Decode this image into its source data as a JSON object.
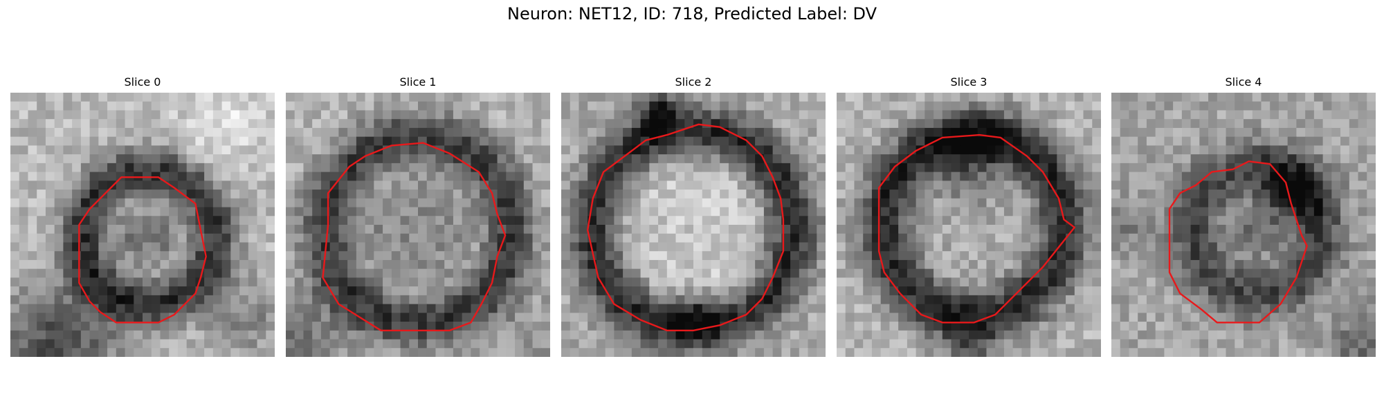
{
  "figure": {
    "title": "Neuron: NET12, ID: 718, Predicted Label: DV",
    "contour_color": "#e8191b",
    "slices": [
      {
        "title": "Slice 0",
        "seed": 11,
        "contour": [
          [
            0.42,
            0.32
          ],
          [
            0.56,
            0.32
          ],
          [
            0.62,
            0.36
          ],
          [
            0.7,
            0.42
          ],
          [
            0.72,
            0.52
          ],
          [
            0.74,
            0.62
          ],
          [
            0.72,
            0.7
          ],
          [
            0.7,
            0.76
          ],
          [
            0.62,
            0.84
          ],
          [
            0.56,
            0.87
          ],
          [
            0.4,
            0.87
          ],
          [
            0.34,
            0.83
          ],
          [
            0.3,
            0.79
          ],
          [
            0.26,
            0.72
          ],
          [
            0.26,
            0.5
          ],
          [
            0.3,
            0.44
          ],
          [
            0.34,
            0.4
          ]
        ],
        "shading": {
          "bg": 185,
          "ringDark": 50,
          "center": 120,
          "ringCx": 0.52,
          "ringCy": 0.55,
          "ringR": 0.25,
          "ringW": 0.09,
          "extra": [
            [
              0.18,
              0.95,
              0.22,
              -110
            ],
            [
              0.82,
              0.1,
              0.18,
              40
            ],
            [
              0.9,
              0.85,
              0.15,
              -50
            ]
          ]
        }
      },
      {
        "title": "Slice 1",
        "seed": 23,
        "contour": [
          [
            0.4,
            0.2
          ],
          [
            0.52,
            0.19
          ],
          [
            0.62,
            0.23
          ],
          [
            0.73,
            0.3
          ],
          [
            0.78,
            0.38
          ],
          [
            0.8,
            0.46
          ],
          [
            0.83,
            0.54
          ],
          [
            0.8,
            0.62
          ],
          [
            0.78,
            0.72
          ],
          [
            0.74,
            0.8
          ],
          [
            0.7,
            0.87
          ],
          [
            0.62,
            0.9
          ],
          [
            0.5,
            0.9
          ],
          [
            0.36,
            0.9
          ],
          [
            0.2,
            0.8
          ],
          [
            0.14,
            0.7
          ],
          [
            0.16,
            0.5
          ],
          [
            0.16,
            0.38
          ],
          [
            0.24,
            0.28
          ],
          [
            0.3,
            0.24
          ]
        ],
        "shading": {
          "bg": 180,
          "ringDark": 60,
          "center": 140,
          "ringCx": 0.5,
          "ringCy": 0.52,
          "ringR": 0.35,
          "ringW": 0.1,
          "extra": [
            [
              0.05,
              0.95,
              0.2,
              -60
            ],
            [
              0.95,
              0.95,
              0.2,
              -30
            ]
          ]
        }
      },
      {
        "title": "Slice 2",
        "seed": 37,
        "contour": [
          [
            0.52,
            0.12
          ],
          [
            0.6,
            0.13
          ],
          [
            0.7,
            0.18
          ],
          [
            0.76,
            0.24
          ],
          [
            0.8,
            0.32
          ],
          [
            0.83,
            0.4
          ],
          [
            0.84,
            0.48
          ],
          [
            0.84,
            0.6
          ],
          [
            0.8,
            0.7
          ],
          [
            0.76,
            0.78
          ],
          [
            0.7,
            0.84
          ],
          [
            0.6,
            0.88
          ],
          [
            0.5,
            0.9
          ],
          [
            0.4,
            0.9
          ],
          [
            0.3,
            0.86
          ],
          [
            0.2,
            0.8
          ],
          [
            0.14,
            0.7
          ],
          [
            0.1,
            0.52
          ],
          [
            0.12,
            0.4
          ],
          [
            0.16,
            0.3
          ],
          [
            0.24,
            0.24
          ],
          [
            0.32,
            0.18
          ],
          [
            0.4,
            0.16
          ]
        ],
        "shading": {
          "bg": 170,
          "ringDark": 45,
          "center": 200,
          "ringCx": 0.5,
          "ringCy": 0.52,
          "ringR": 0.38,
          "ringW": 0.09,
          "extra": [
            [
              0.36,
              0.08,
              0.08,
              -120
            ],
            [
              0.5,
              0.84,
              0.09,
              -80
            ]
          ]
        }
      },
      {
        "title": "Slice 3",
        "seed": 41,
        "contour": [
          [
            0.54,
            0.16
          ],
          [
            0.62,
            0.17
          ],
          [
            0.72,
            0.24
          ],
          [
            0.78,
            0.3
          ],
          [
            0.84,
            0.4
          ],
          [
            0.86,
            0.48
          ],
          [
            0.9,
            0.51
          ],
          [
            0.86,
            0.56
          ],
          [
            0.78,
            0.66
          ],
          [
            0.7,
            0.74
          ],
          [
            0.6,
            0.84
          ],
          [
            0.52,
            0.87
          ],
          [
            0.4,
            0.87
          ],
          [
            0.32,
            0.84
          ],
          [
            0.24,
            0.76
          ],
          [
            0.18,
            0.68
          ],
          [
            0.16,
            0.6
          ],
          [
            0.16,
            0.36
          ],
          [
            0.22,
            0.28
          ],
          [
            0.3,
            0.22
          ],
          [
            0.4,
            0.17
          ]
        ],
        "shading": {
          "bg": 178,
          "ringDark": 40,
          "center": 170,
          "ringCx": 0.52,
          "ringCy": 0.5,
          "ringR": 0.34,
          "ringW": 0.1,
          "extra": [
            [
              0.5,
              0.25,
              0.14,
              -90
            ],
            [
              0.5,
              0.95,
              0.1,
              -80
            ]
          ]
        }
      },
      {
        "title": "Slice 4",
        "seed": 53,
        "contour": [
          [
            0.52,
            0.26
          ],
          [
            0.6,
            0.27
          ],
          [
            0.66,
            0.34
          ],
          [
            0.68,
            0.42
          ],
          [
            0.7,
            0.48
          ],
          [
            0.72,
            0.54
          ],
          [
            0.74,
            0.58
          ],
          [
            0.72,
            0.64
          ],
          [
            0.7,
            0.7
          ],
          [
            0.64,
            0.8
          ],
          [
            0.56,
            0.87
          ],
          [
            0.4,
            0.87
          ],
          [
            0.34,
            0.82
          ],
          [
            0.26,
            0.76
          ],
          [
            0.22,
            0.68
          ],
          [
            0.22,
            0.44
          ],
          [
            0.26,
            0.38
          ],
          [
            0.32,
            0.35
          ],
          [
            0.38,
            0.3
          ],
          [
            0.46,
            0.29
          ]
        ],
        "shading": {
          "bg": 165,
          "ringDark": 70,
          "center": 120,
          "ringCx": 0.55,
          "ringCy": 0.52,
          "ringR": 0.24,
          "ringW": 0.1,
          "extra": [
            [
              0.68,
              0.38,
              0.12,
              -100
            ],
            [
              0.95,
              0.95,
              0.12,
              -60
            ],
            [
              0.05,
              0.5,
              0.1,
              -40
            ]
          ]
        }
      }
    ]
  }
}
